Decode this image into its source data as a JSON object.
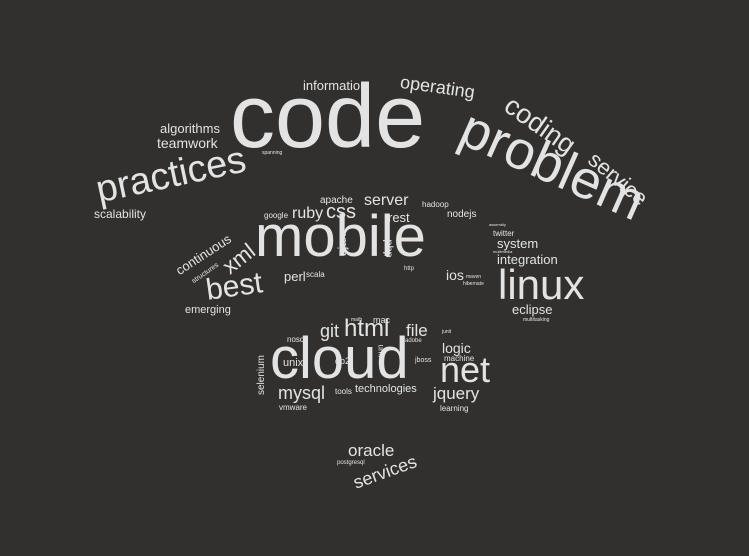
{
  "background": "#31302f",
  "word_color": "#e3e3e3",
  "words": [
    {
      "text": "code"
    },
    {
      "text": "problem"
    },
    {
      "text": "mobile"
    },
    {
      "text": "cloud"
    },
    {
      "text": "practices"
    },
    {
      "text": "linux"
    },
    {
      "text": "net"
    },
    {
      "text": "best"
    },
    {
      "text": "coding"
    },
    {
      "text": "service"
    },
    {
      "text": "operating"
    },
    {
      "text": "information"
    },
    {
      "text": "algorithms"
    },
    {
      "text": "teamwork"
    },
    {
      "text": "scalability"
    },
    {
      "text": "xml"
    },
    {
      "text": "continuous"
    },
    {
      "text": "structures"
    },
    {
      "text": "emerging"
    },
    {
      "text": "html"
    },
    {
      "text": "css"
    },
    {
      "text": "ruby"
    },
    {
      "text": "server"
    },
    {
      "text": "apache"
    },
    {
      "text": "rest"
    },
    {
      "text": "hadoop"
    },
    {
      "text": "nodejs"
    },
    {
      "text": "google"
    },
    {
      "text": "ajax"
    },
    {
      "text": "php"
    },
    {
      "text": "perl"
    },
    {
      "text": "scala"
    },
    {
      "text": "system"
    },
    {
      "text": "twitter"
    },
    {
      "text": "integration"
    },
    {
      "text": "ios"
    },
    {
      "text": "eclipse"
    },
    {
      "text": "multitasking"
    },
    {
      "text": "git"
    },
    {
      "text": "file"
    },
    {
      "text": "mac"
    },
    {
      "text": "math"
    },
    {
      "text": "nosql"
    },
    {
      "text": "logic"
    },
    {
      "text": "machine"
    },
    {
      "text": "jquery"
    },
    {
      "text": "learning"
    },
    {
      "text": "mysql"
    },
    {
      "text": "technologies"
    },
    {
      "text": "tools"
    },
    {
      "text": "unix"
    },
    {
      "text": "db2"
    },
    {
      "text": "selenium"
    },
    {
      "text": "vmware"
    },
    {
      "text": "uml"
    },
    {
      "text": "jboss"
    },
    {
      "text": "adobe"
    },
    {
      "text": "junit"
    },
    {
      "text": "oracle"
    },
    {
      "text": "services"
    },
    {
      "text": "postgresql"
    },
    {
      "text": "spanning"
    },
    {
      "text": "hibernate"
    },
    {
      "text": "maven"
    },
    {
      "text": "http"
    },
    {
      "text": "assembly"
    },
    {
      "text": "multimedia"
    }
  ]
}
